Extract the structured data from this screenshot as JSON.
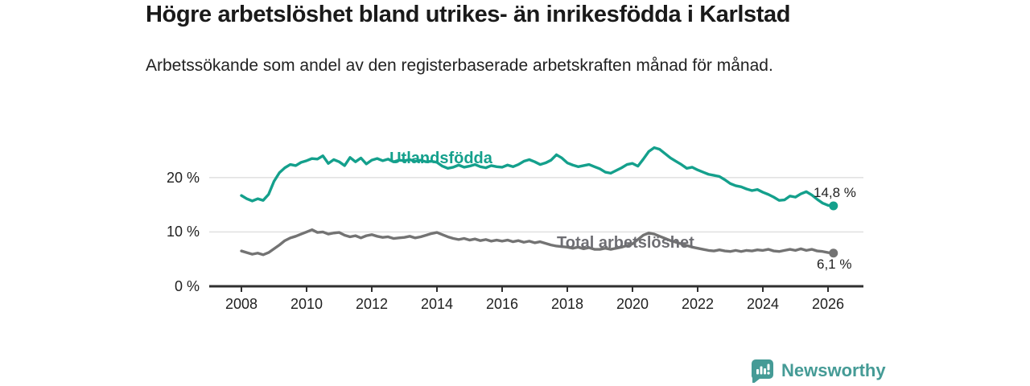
{
  "header": {
    "title": "Högre arbetslöshet bland utrikes- än inrikesfödda i Karlstad",
    "subtitle": "Arbetssökande som andel av den registerbaserade arbetskraften månad för månad."
  },
  "chart_data": {
    "type": "line",
    "title": "Högre arbetslöshet bland utrikes- än inrikesfödda i Karlstad",
    "xlabel": "",
    "ylabel": "",
    "grid": "horizontal",
    "legend_position": "inline-end-of-line-labels",
    "ylim": [
      0,
      27
    ],
    "y_tick_labels": [
      "20 %",
      "10 %",
      "0 %"
    ],
    "y_tick_values": [
      20,
      10,
      0
    ],
    "x_tick_labels": [
      "2008",
      "2010",
      "2012",
      "2014",
      "2016",
      "2018",
      "2020",
      "2022",
      "2024",
      "2026"
    ],
    "x_start_year": 2008.0,
    "x_step_years": 0.1667,
    "x_end_year": 2026.17,
    "series": [
      {
        "name": "Utlandsfödda",
        "color": "#14a08c",
        "end_label": "14,8 %",
        "end_value": 14.8,
        "values": [
          16.7,
          16.1,
          15.7,
          16.1,
          15.8,
          16.9,
          19.3,
          20.9,
          21.8,
          22.4,
          22.2,
          22.8,
          23.1,
          23.5,
          23.4,
          24.0,
          22.6,
          23.3,
          22.9,
          22.2,
          23.7,
          22.9,
          23.6,
          22.5,
          23.2,
          23.5,
          23.1,
          23.4,
          22.9,
          23.2,
          23.1,
          23.3,
          23.0,
          23.2,
          22.9,
          23.0,
          22.8,
          22.1,
          21.7,
          21.9,
          22.3,
          21.9,
          22.1,
          22.4,
          22.0,
          21.8,
          22.2,
          22.0,
          21.9,
          22.3,
          22.0,
          22.4,
          23.0,
          23.3,
          22.9,
          22.4,
          22.7,
          23.2,
          24.2,
          23.6,
          22.7,
          22.3,
          22.0,
          22.2,
          22.4,
          22.0,
          21.6,
          21.0,
          20.8,
          21.3,
          21.8,
          22.4,
          22.6,
          22.1,
          23.4,
          24.8,
          25.5,
          25.2,
          24.4,
          23.6,
          23.0,
          22.4,
          21.7,
          21.9,
          21.4,
          21.0,
          20.6,
          20.4,
          20.2,
          19.6,
          18.9,
          18.5,
          18.3,
          17.9,
          17.6,
          17.8,
          17.3,
          16.9,
          16.4,
          15.8,
          15.9,
          16.6,
          16.4,
          17.0,
          17.4,
          16.8,
          16.0,
          15.3,
          14.9,
          14.8
        ]
      },
      {
        "name": "Total arbetslöshet",
        "color": "#737373",
        "end_label": "6,1 %",
        "end_value": 6.1,
        "values": [
          6.5,
          6.2,
          5.9,
          6.1,
          5.8,
          6.2,
          6.9,
          7.6,
          8.4,
          8.9,
          9.2,
          9.6,
          10.0,
          10.4,
          9.9,
          10.0,
          9.6,
          9.8,
          9.9,
          9.4,
          9.1,
          9.3,
          8.9,
          9.3,
          9.5,
          9.2,
          9.0,
          9.1,
          8.8,
          8.9,
          9.0,
          9.2,
          8.9,
          9.1,
          9.4,
          9.7,
          9.9,
          9.5,
          9.1,
          8.8,
          8.6,
          8.8,
          8.5,
          8.7,
          8.4,
          8.6,
          8.3,
          8.5,
          8.3,
          8.5,
          8.2,
          8.4,
          8.1,
          8.3,
          8.0,
          8.2,
          7.9,
          7.6,
          7.4,
          7.3,
          7.2,
          7.0,
          7.2,
          6.9,
          7.1,
          6.8,
          6.8,
          7.0,
          6.8,
          7.0,
          7.2,
          7.5,
          7.8,
          8.6,
          9.4,
          9.8,
          9.6,
          9.2,
          8.8,
          8.4,
          8.1,
          7.8,
          7.5,
          7.2,
          7.0,
          6.8,
          6.6,
          6.5,
          6.7,
          6.5,
          6.4,
          6.6,
          6.4,
          6.6,
          6.5,
          6.7,
          6.6,
          6.8,
          6.5,
          6.4,
          6.6,
          6.8,
          6.6,
          6.9,
          6.6,
          6.8,
          6.5,
          6.4,
          6.2,
          6.1
        ]
      }
    ],
    "colors": {
      "gridline": "#e2e2e2",
      "axis": "#2f2f2f",
      "tick_text": "#1f1f1f",
      "series_utlandsfodda": "#14a08c",
      "series_total": "#737373",
      "total_label_gray": "#6e6e73"
    }
  },
  "footer": {
    "brand": "Newsworthy",
    "brand_color": "#459b96"
  }
}
